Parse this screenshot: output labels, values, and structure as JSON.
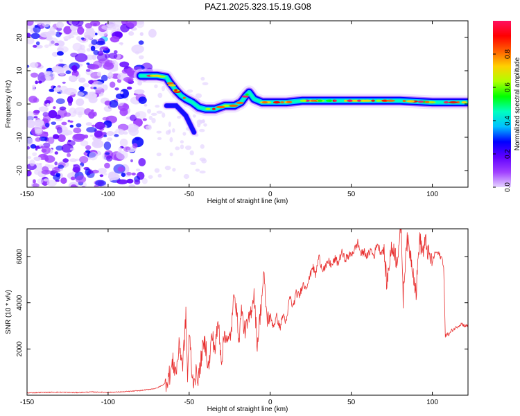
{
  "title": "PAZ1.2025.323.15.19.G08",
  "chart_data": [
    {
      "type": "heatmap",
      "name": "spectrogram",
      "xlabel": "Height of straight line (km)",
      "ylabel": "Frequency (Hz)",
      "xlim": [
        -150,
        122
      ],
      "ylim": [
        -25,
        25
      ],
      "x_ticks": [
        -150,
        -100,
        -50,
        0,
        50,
        100
      ],
      "y_ticks": [
        -20,
        -10,
        0,
        10,
        20
      ],
      "colorbar": {
        "label": "Normalized spectral amplitude",
        "ticks": [
          "0.0",
          "0.2",
          "0.4",
          "0.6",
          "0.8"
        ],
        "range": [
          0,
          1
        ],
        "colors": [
          "#e6d5ff",
          "#a040ff",
          "#6000ff",
          "#0000ff",
          "#00c0ff",
          "#00ffc0",
          "#00ff00",
          "#b0ff00",
          "#ffd000",
          "#ff6000",
          "#ff0000",
          "#ff1060"
        ]
      },
      "main_ridge": [
        {
          "x": -80,
          "f": 8.5
        },
        {
          "x": -70,
          "f": 8.5
        },
        {
          "x": -64,
          "f": 8.0
        },
        {
          "x": -62,
          "f": 6.5
        },
        {
          "x": -58,
          "f": 4.0
        },
        {
          "x": -55,
          "f": 2.5
        },
        {
          "x": -52,
          "f": 1.5
        },
        {
          "x": -48,
          "f": 0.5
        },
        {
          "x": -44,
          "f": -1.0
        },
        {
          "x": -40,
          "f": -1.5
        },
        {
          "x": -34,
          "f": -1.5
        },
        {
          "x": -28,
          "f": -0.5
        },
        {
          "x": -22,
          "f": -0.5
        },
        {
          "x": -18,
          "f": 0.5
        },
        {
          "x": -15,
          "f": 2.5
        },
        {
          "x": -13,
          "f": 3.5
        },
        {
          "x": -10,
          "f": 1.5
        },
        {
          "x": -5,
          "f": 0.5
        },
        {
          "x": 0,
          "f": 0.5
        },
        {
          "x": 10,
          "f": 0.5
        },
        {
          "x": 20,
          "f": 1.0
        },
        {
          "x": 40,
          "f": 1.0
        },
        {
          "x": 60,
          "f": 1.0
        },
        {
          "x": 80,
          "f": 1.0
        },
        {
          "x": 100,
          "f": 0.5
        },
        {
          "x": 122,
          "f": 0.5
        }
      ],
      "secondary_branch": [
        {
          "x": -64,
          "f": -0.5
        },
        {
          "x": -58,
          "f": -0.5
        },
        {
          "x": -52,
          "f": -3.5
        },
        {
          "x": -47,
          "f": -8.5
        }
      ],
      "noise_region_x": [
        -150,
        -75
      ]
    },
    {
      "type": "line",
      "name": "snr",
      "xlabel": "Height of straight line (km)",
      "ylabel": "SNR (10 * v/v)",
      "xlim": [
        -150,
        122
      ],
      "ylim": [
        0,
        7200
      ],
      "x_ticks": [
        -150,
        -100,
        -50,
        0,
        50,
        100
      ],
      "y_ticks": [
        2000,
        4000,
        6000
      ],
      "color": "#e83030",
      "series": [
        {
          "name": "SNR",
          "x": [
            -150,
            -140,
            -130,
            -120,
            -110,
            -100,
            -90,
            -80,
            -75,
            -70,
            -65,
            -62,
            -60,
            -58,
            -56,
            -54,
            -52,
            -51,
            -50,
            -49,
            -48,
            -46,
            -44,
            -42,
            -40,
            -38,
            -36,
            -34,
            -32,
            -30,
            -28,
            -26,
            -24,
            -22,
            -20,
            -19,
            -18,
            -16,
            -14,
            -12,
            -10,
            -8,
            -6,
            -4,
            -2,
            0,
            2,
            4,
            6,
            8,
            10,
            12,
            14,
            16,
            18,
            20,
            22,
            24,
            26,
            28,
            30,
            32,
            34,
            36,
            38,
            40,
            42,
            44,
            46,
            48,
            50,
            52,
            54,
            56,
            58,
            60,
            62,
            64,
            66,
            68,
            70,
            72,
            74,
            76,
            78,
            80,
            81,
            82,
            84,
            86,
            88,
            90,
            92,
            94,
            96,
            98,
            100,
            102,
            104,
            106,
            107,
            108,
            109,
            110,
            112,
            114,
            116,
            118,
            120,
            122
          ],
          "y": [
            100,
            120,
            130,
            110,
            140,
            120,
            150,
            200,
            250,
            300,
            500,
            900,
            1400,
            1000,
            2200,
            1300,
            3400,
            700,
            2600,
            1800,
            600,
            900,
            800,
            1900,
            2300,
            1100,
            2600,
            2000,
            3200,
            1500,
            2800,
            2200,
            2800,
            4600,
            3000,
            2300,
            3800,
            2800,
            3000,
            3600,
            4400,
            2200,
            3600,
            5200,
            3300,
            3400,
            3000,
            3400,
            2900,
            3500,
            3100,
            4300,
            3800,
            4400,
            4300,
            4800,
            4700,
            5000,
            5600,
            5200,
            6000,
            5500,
            5500,
            5800,
            5600,
            5900,
            5700,
            6200,
            5900,
            6000,
            6100,
            6300,
            6600,
            6100,
            6200,
            6000,
            6300,
            6000,
            6600,
            6200,
            6300,
            4800,
            6100,
            6400,
            5800,
            6900,
            7000,
            4200,
            6700,
            6300,
            5500,
            4400,
            6800,
            6200,
            6600,
            6000,
            5800,
            6200,
            6100,
            5900,
            5600,
            2500,
            2700,
            2600,
            2800,
            2900,
            3000,
            3100,
            3000,
            3000
          ]
        }
      ]
    }
  ]
}
